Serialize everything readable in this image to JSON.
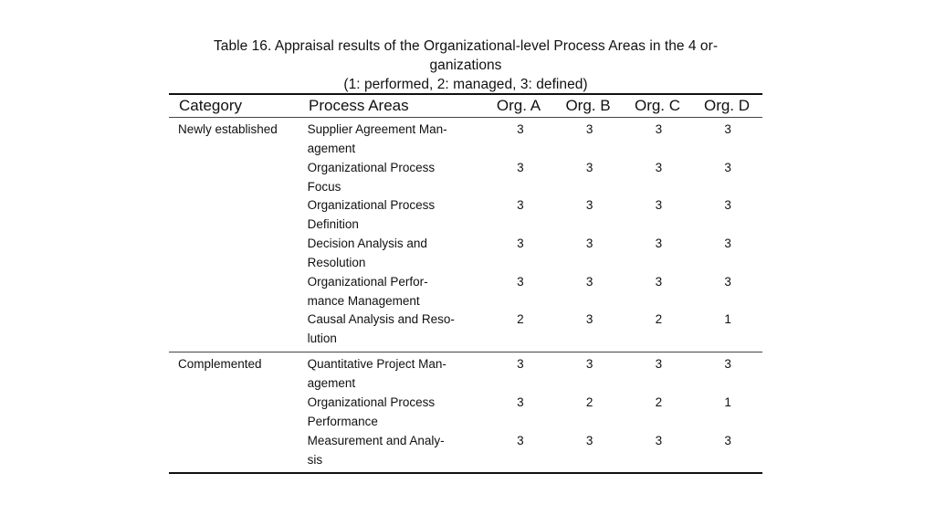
{
  "caption": {
    "line1": "Table 16. Appraisal results of the Organizational-level Process Areas in the 4 or-",
    "line2": "ganizations",
    "line3": "(1: performed, 2: managed, 3: defined)"
  },
  "table": {
    "headers": [
      "Category",
      "Process Areas",
      "Org. A",
      "Org. B",
      "Org. C",
      "Org. D"
    ],
    "groups": [
      {
        "category": "Newly established",
        "rows": [
          {
            "pa": [
              "Supplier Agreement Man-",
              "agement"
            ],
            "values": [
              "3",
              "3",
              "3",
              "3"
            ]
          },
          {
            "pa": [
              "Organizational Process",
              "Focus"
            ],
            "values": [
              "3",
              "3",
              "3",
              "3"
            ]
          },
          {
            "pa": [
              "Organizational Process",
              "Definition"
            ],
            "values": [
              "3",
              "3",
              "3",
              "3"
            ]
          },
          {
            "pa": [
              "Decision Analysis and",
              "Resolution"
            ],
            "values": [
              "3",
              "3",
              "3",
              "3"
            ]
          },
          {
            "pa": [
              "Organizational Perfor-",
              "mance Management"
            ],
            "values": [
              "3",
              "3",
              "3",
              "3"
            ]
          },
          {
            "pa": [
              "Causal Analysis and Reso-",
              "lution"
            ],
            "values": [
              "2",
              "3",
              "2",
              "1"
            ]
          }
        ]
      },
      {
        "category": "Complemented",
        "rows": [
          {
            "pa": [
              "Quantitative Project Man-",
              "agement"
            ],
            "values": [
              "3",
              "3",
              "3",
              "3"
            ]
          },
          {
            "pa": [
              "Organizational Process",
              "Performance"
            ],
            "values": [
              "3",
              "2",
              "2",
              "1"
            ]
          },
          {
            "pa": [
              "Measurement and Analy-",
              "sis"
            ],
            "values": [
              "3",
              "3",
              "3",
              "3"
            ]
          }
        ]
      }
    ]
  }
}
